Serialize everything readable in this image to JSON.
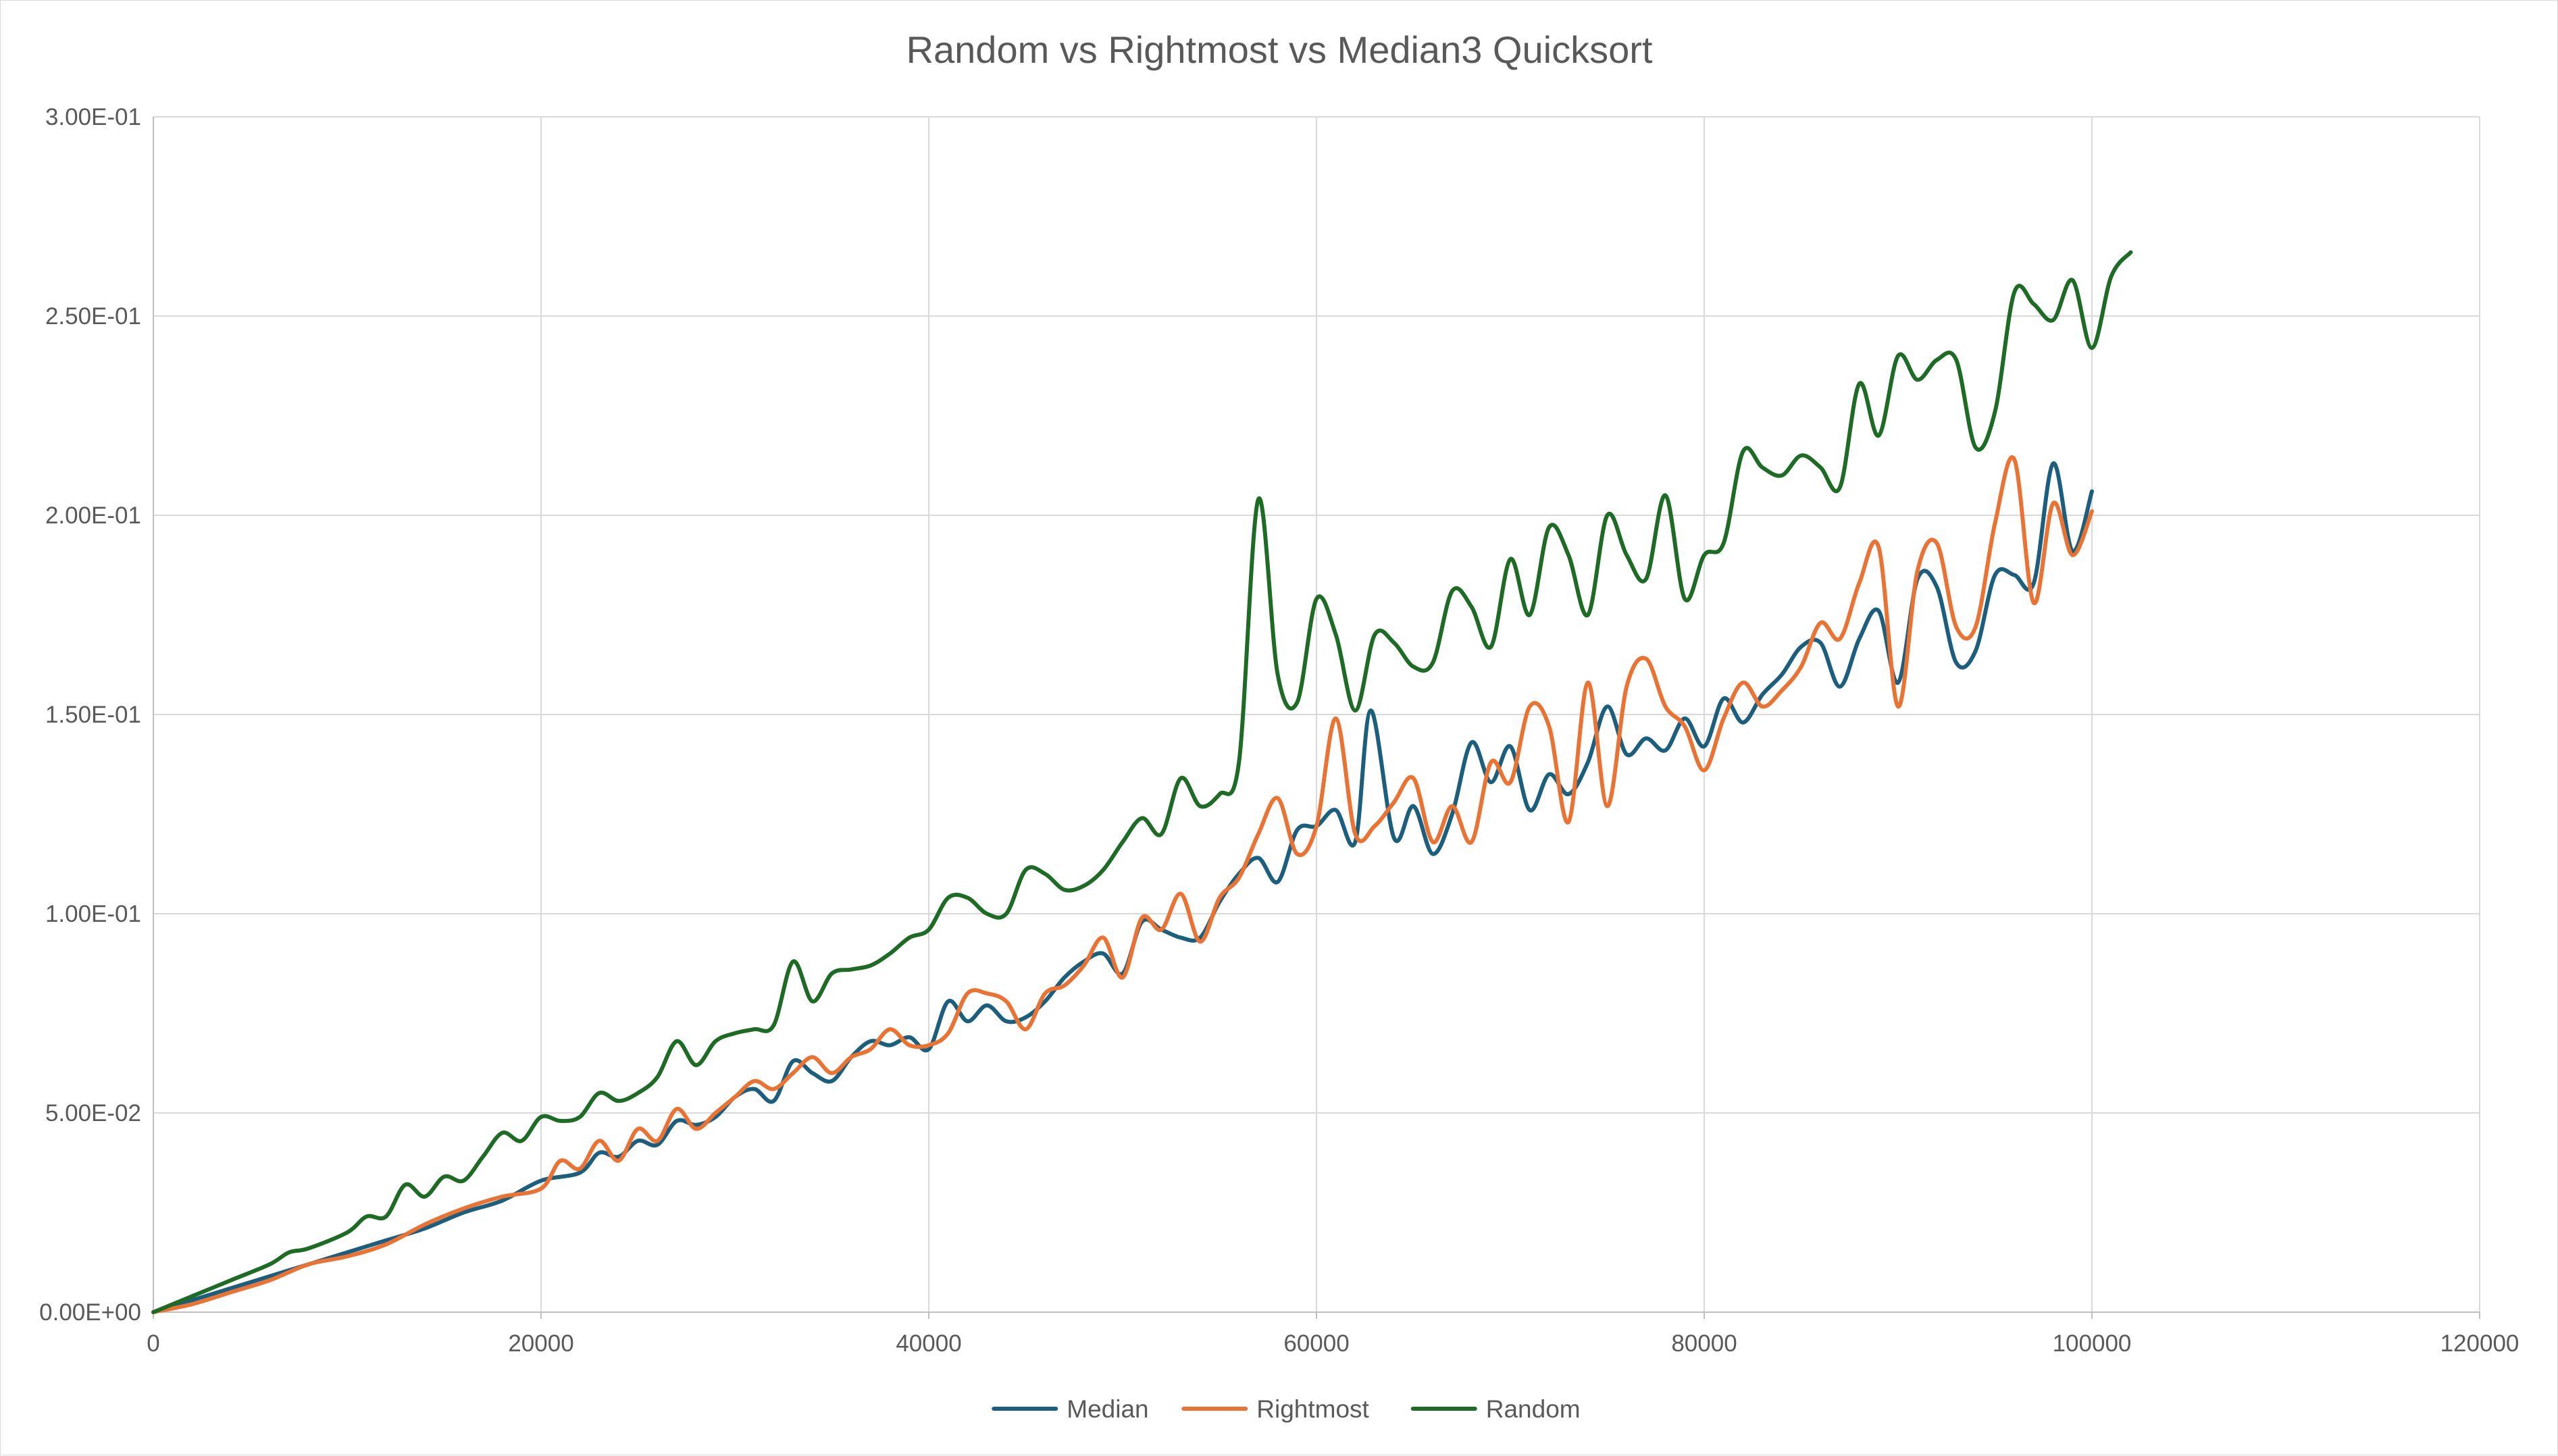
{
  "chart_data": {
    "type": "line",
    "title": "Random vs Rightmost vs Median3 Quicksort",
    "xlabel": "",
    "ylabel": "",
    "xlim": [
      0,
      120000
    ],
    "ylim": [
      0,
      0.3
    ],
    "x_ticks": [
      0,
      20000,
      40000,
      60000,
      80000,
      100000,
      120000
    ],
    "x_tick_labels": [
      "0",
      "20000",
      "40000",
      "60000",
      "80000",
      "100000",
      "120000"
    ],
    "y_ticks": [
      0,
      0.05,
      0.1,
      0.15,
      0.2,
      0.25,
      0.3
    ],
    "y_tick_labels": [
      "0.00E+00",
      "5.00E-02",
      "1.00E-01",
      "1.50E-01",
      "2.00E-01",
      "2.50E-01",
      "3.00E-01"
    ],
    "grid": true,
    "legend_position": "bottom",
    "series": [
      {
        "name": "Median",
        "color": "#1b5e7d",
        "points": [
          [
            0,
            0
          ],
          [
            2000,
            0.003
          ],
          [
            4000,
            0.006
          ],
          [
            6000,
            0.009
          ],
          [
            8000,
            0.012
          ],
          [
            10000,
            0.015
          ],
          [
            12000,
            0.018
          ],
          [
            14000,
            0.021
          ],
          [
            16000,
            0.025
          ],
          [
            18000,
            0.028
          ],
          [
            20000,
            0.033
          ],
          [
            22000,
            0.035
          ],
          [
            23000,
            0.04
          ],
          [
            24000,
            0.039
          ],
          [
            25000,
            0.043
          ],
          [
            26000,
            0.042
          ],
          [
            27000,
            0.048
          ],
          [
            28000,
            0.047
          ],
          [
            29000,
            0.049
          ],
          [
            30000,
            0.054
          ],
          [
            31000,
            0.056
          ],
          [
            32000,
            0.053
          ],
          [
            33000,
            0.063
          ],
          [
            34000,
            0.06
          ],
          [
            35000,
            0.058
          ],
          [
            36000,
            0.064
          ],
          [
            37000,
            0.068
          ],
          [
            38000,
            0.067
          ],
          [
            39000,
            0.069
          ],
          [
            40000,
            0.066
          ],
          [
            41000,
            0.078
          ],
          [
            42000,
            0.073
          ],
          [
            43000,
            0.077
          ],
          [
            44000,
            0.073
          ],
          [
            45000,
            0.074
          ],
          [
            46000,
            0.078
          ],
          [
            47000,
            0.084
          ],
          [
            48000,
            0.088
          ],
          [
            49000,
            0.09
          ],
          [
            50000,
            0.085
          ],
          [
            51000,
            0.098
          ],
          [
            52000,
            0.096
          ],
          [
            53000,
            0.094
          ],
          [
            54000,
            0.094
          ],
          [
            55000,
            0.103
          ],
          [
            56000,
            0.11
          ],
          [
            57000,
            0.114
          ],
          [
            58000,
            0.108
          ],
          [
            59000,
            0.121
          ],
          [
            60000,
            0.122
          ],
          [
            61000,
            0.126
          ],
          [
            62000,
            0.118
          ],
          [
            62800,
            0.151
          ],
          [
            64000,
            0.119
          ],
          [
            65000,
            0.127
          ],
          [
            66000,
            0.115
          ],
          [
            67000,
            0.125
          ],
          [
            68000,
            0.143
          ],
          [
            69000,
            0.133
          ],
          [
            70000,
            0.142
          ],
          [
            71000,
            0.126
          ],
          [
            72000,
            0.135
          ],
          [
            73000,
            0.13
          ],
          [
            74000,
            0.138
          ],
          [
            75000,
            0.152
          ],
          [
            76000,
            0.14
          ],
          [
            77000,
            0.144
          ],
          [
            78000,
            0.141
          ],
          [
            79000,
            0.149
          ],
          [
            80000,
            0.142
          ],
          [
            81000,
            0.154
          ],
          [
            82000,
            0.148
          ],
          [
            83000,
            0.155
          ],
          [
            84000,
            0.16
          ],
          [
            85000,
            0.167
          ],
          [
            86000,
            0.168
          ],
          [
            87000,
            0.157
          ],
          [
            88000,
            0.169
          ],
          [
            89000,
            0.176
          ],
          [
            90000,
            0.158
          ],
          [
            91000,
            0.184
          ],
          [
            92000,
            0.182
          ],
          [
            93000,
            0.163
          ],
          [
            94000,
            0.166
          ],
          [
            95000,
            0.185
          ],
          [
            96000,
            0.185
          ],
          [
            97000,
            0.183
          ],
          [
            98000,
            0.213
          ],
          [
            99000,
            0.191
          ],
          [
            100000,
            0.206
          ]
        ]
      },
      {
        "name": "Rightmost",
        "color": "#ea7334",
        "points": [
          [
            0,
            0
          ],
          [
            2000,
            0.002
          ],
          [
            4000,
            0.005
          ],
          [
            6000,
            0.008
          ],
          [
            8000,
            0.012
          ],
          [
            10000,
            0.014
          ],
          [
            12000,
            0.017
          ],
          [
            14000,
            0.022
          ],
          [
            16000,
            0.026
          ],
          [
            18000,
            0.029
          ],
          [
            20000,
            0.031
          ],
          [
            21000,
            0.038
          ],
          [
            22000,
            0.036
          ],
          [
            23000,
            0.043
          ],
          [
            24000,
            0.038
          ],
          [
            25000,
            0.046
          ],
          [
            26000,
            0.043
          ],
          [
            27000,
            0.051
          ],
          [
            28000,
            0.046
          ],
          [
            29000,
            0.05
          ],
          [
            30000,
            0.054
          ],
          [
            31000,
            0.058
          ],
          [
            32000,
            0.056
          ],
          [
            33000,
            0.06
          ],
          [
            34000,
            0.064
          ],
          [
            35000,
            0.06
          ],
          [
            36000,
            0.064
          ],
          [
            37000,
            0.066
          ],
          [
            38000,
            0.071
          ],
          [
            39000,
            0.067
          ],
          [
            40000,
            0.067
          ],
          [
            41000,
            0.07
          ],
          [
            42000,
            0.08
          ],
          [
            43000,
            0.08
          ],
          [
            44000,
            0.078
          ],
          [
            45000,
            0.071
          ],
          [
            46000,
            0.08
          ],
          [
            47000,
            0.082
          ],
          [
            48000,
            0.087
          ],
          [
            49000,
            0.094
          ],
          [
            50000,
            0.084
          ],
          [
            51000,
            0.099
          ],
          [
            52000,
            0.096
          ],
          [
            53000,
            0.105
          ],
          [
            54000,
            0.093
          ],
          [
            55000,
            0.104
          ],
          [
            56000,
            0.109
          ],
          [
            57000,
            0.12
          ],
          [
            58000,
            0.129
          ],
          [
            59000,
            0.115
          ],
          [
            60000,
            0.122
          ],
          [
            61000,
            0.149
          ],
          [
            62000,
            0.12
          ],
          [
            63000,
            0.122
          ],
          [
            64000,
            0.128
          ],
          [
            65000,
            0.134
          ],
          [
            66000,
            0.118
          ],
          [
            67000,
            0.127
          ],
          [
            68000,
            0.118
          ],
          [
            69000,
            0.138
          ],
          [
            70000,
            0.133
          ],
          [
            71000,
            0.152
          ],
          [
            72000,
            0.147
          ],
          [
            73000,
            0.123
          ],
          [
            74000,
            0.158
          ],
          [
            75000,
            0.127
          ],
          [
            76000,
            0.157
          ],
          [
            77000,
            0.164
          ],
          [
            78000,
            0.152
          ],
          [
            79000,
            0.147
          ],
          [
            80000,
            0.136
          ],
          [
            81000,
            0.149
          ],
          [
            82000,
            0.158
          ],
          [
            83000,
            0.152
          ],
          [
            84000,
            0.156
          ],
          [
            85000,
            0.162
          ],
          [
            86000,
            0.173
          ],
          [
            87000,
            0.169
          ],
          [
            88000,
            0.183
          ],
          [
            89000,
            0.192
          ],
          [
            90000,
            0.152
          ],
          [
            91000,
            0.186
          ],
          [
            92000,
            0.193
          ],
          [
            93000,
            0.172
          ],
          [
            94000,
            0.172
          ],
          [
            95000,
            0.198
          ],
          [
            96000,
            0.214
          ],
          [
            97000,
            0.178
          ],
          [
            98000,
            0.203
          ],
          [
            99000,
            0.19
          ],
          [
            100000,
            0.201
          ]
        ]
      },
      {
        "name": "Random",
        "color": "#1d6b24",
        "points": [
          [
            0,
            0
          ],
          [
            2000,
            0.004
          ],
          [
            4000,
            0.008
          ],
          [
            6000,
            0.012
          ],
          [
            7000,
            0.015
          ],
          [
            8000,
            0.016
          ],
          [
            10000,
            0.02
          ],
          [
            11000,
            0.024
          ],
          [
            12000,
            0.024
          ],
          [
            13000,
            0.032
          ],
          [
            14000,
            0.029
          ],
          [
            15000,
            0.034
          ],
          [
            16000,
            0.033
          ],
          [
            17000,
            0.039
          ],
          [
            18000,
            0.045
          ],
          [
            19000,
            0.043
          ],
          [
            20000,
            0.049
          ],
          [
            21000,
            0.048
          ],
          [
            22000,
            0.049
          ],
          [
            23000,
            0.055
          ],
          [
            24000,
            0.053
          ],
          [
            25000,
            0.055
          ],
          [
            26000,
            0.059
          ],
          [
            27000,
            0.068
          ],
          [
            28000,
            0.062
          ],
          [
            29000,
            0.068
          ],
          [
            30000,
            0.07
          ],
          [
            31000,
            0.071
          ],
          [
            32000,
            0.072
          ],
          [
            33000,
            0.088
          ],
          [
            34000,
            0.078
          ],
          [
            35000,
            0.085
          ],
          [
            36000,
            0.086
          ],
          [
            37000,
            0.087
          ],
          [
            38000,
            0.09
          ],
          [
            39000,
            0.094
          ],
          [
            40000,
            0.096
          ],
          [
            41000,
            0.104
          ],
          [
            42000,
            0.104
          ],
          [
            43000,
            0.1
          ],
          [
            44000,
            0.1
          ],
          [
            45000,
            0.111
          ],
          [
            46000,
            0.11
          ],
          [
            47000,
            0.106
          ],
          [
            48000,
            0.107
          ],
          [
            49000,
            0.111
          ],
          [
            50000,
            0.118
          ],
          [
            51000,
            0.124
          ],
          [
            52000,
            0.12
          ],
          [
            53000,
            0.134
          ],
          [
            54000,
            0.127
          ],
          [
            55000,
            0.13
          ],
          [
            56000,
            0.138
          ],
          [
            57000,
            0.204
          ],
          [
            58000,
            0.16
          ],
          [
            59000,
            0.153
          ],
          [
            60000,
            0.179
          ],
          [
            61000,
            0.17
          ],
          [
            62000,
            0.151
          ],
          [
            63000,
            0.17
          ],
          [
            64000,
            0.168
          ],
          [
            65000,
            0.162
          ],
          [
            66000,
            0.163
          ],
          [
            67000,
            0.181
          ],
          [
            68000,
            0.177
          ],
          [
            69000,
            0.167
          ],
          [
            70000,
            0.189
          ],
          [
            71000,
            0.175
          ],
          [
            72000,
            0.197
          ],
          [
            73000,
            0.19
          ],
          [
            74000,
            0.175
          ],
          [
            75000,
            0.2
          ],
          [
            76000,
            0.19
          ],
          [
            77000,
            0.184
          ],
          [
            78000,
            0.205
          ],
          [
            79000,
            0.179
          ],
          [
            80000,
            0.19
          ],
          [
            81000,
            0.193
          ],
          [
            82000,
            0.216
          ],
          [
            83000,
            0.212
          ],
          [
            84000,
            0.21
          ],
          [
            85000,
            0.215
          ],
          [
            86000,
            0.212
          ],
          [
            87000,
            0.207
          ],
          [
            88000,
            0.233
          ],
          [
            89000,
            0.22
          ],
          [
            90000,
            0.24
          ],
          [
            91000,
            0.234
          ],
          [
            92000,
            0.239
          ],
          [
            93000,
            0.239
          ],
          [
            94000,
            0.217
          ],
          [
            95000,
            0.226
          ],
          [
            96000,
            0.256
          ],
          [
            97000,
            0.253
          ],
          [
            98000,
            0.249
          ],
          [
            99000,
            0.259
          ],
          [
            100000,
            0.242
          ],
          [
            101000,
            0.26
          ],
          [
            102000,
            0.266
          ]
        ]
      }
    ]
  }
}
